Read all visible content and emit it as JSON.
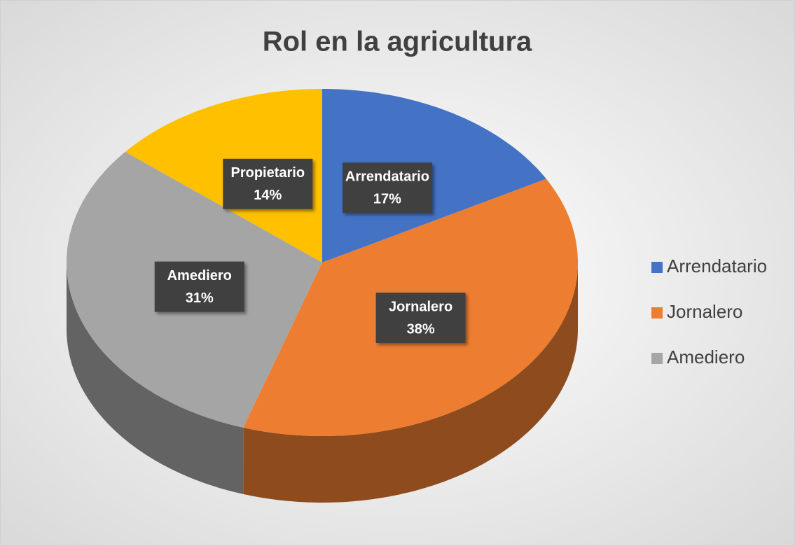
{
  "chart_data": {
    "type": "pie",
    "title": "Rol en la agricultura",
    "categories": [
      "Arrendatario",
      "Jornalero",
      "Amediero",
      "Propietario"
    ],
    "values": [
      17,
      38,
      31,
      14
    ],
    "value_labels": [
      "17%",
      "38%",
      "31%",
      "14%"
    ],
    "colors": [
      "#4472c4",
      "#ed7d31",
      "#a5a5a5",
      "#ffc000"
    ],
    "legend": "right"
  }
}
